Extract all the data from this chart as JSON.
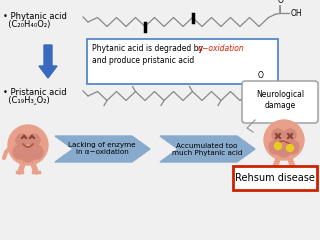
{
  "bg_color": "#f0f0f0",
  "phytanic_label_1": "• Phytanic acid",
  "phytanic_label_2": "  (C₂₀H₄₀O₂)",
  "pristanic_label_1": "• Pristanic acid",
  "pristanic_label_2": "  (C₁₉H₃‸O₂)",
  "box_text_black1": "Phytanic acid is degraded by ",
  "box_text_red": "α−oxidation",
  "box_text_black2": "and produce pristanic acid",
  "neuro_text": "Neurological\ndamage",
  "lacking_text": "Lacking of enzyme\nin α−oxidation",
  "accum_text": "Accumulated too\nmuch Phytanic acid",
  "rehsum_text": "Rehsum disease",
  "blue_arrow_color": "#3a6abf",
  "box_edge_color": "#5588cc",
  "chain_color": "#888888",
  "rehsum_edge": "#cc2200",
  "brain_color": "#e8a08a",
  "brain_fold_color": "#d4897a",
  "arrow_body_color": "#88aacc",
  "bubble_edge": "#999999",
  "white": "#ffffff",
  "black": "#000000",
  "red_text": "#dd2200"
}
